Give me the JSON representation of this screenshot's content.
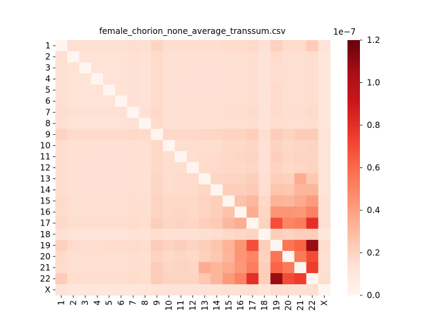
{
  "chart_data": {
    "type": "heatmap",
    "title": "female_chorion_none_average_transsum.csv",
    "xlabel": "",
    "ylabel": "",
    "row_labels": [
      "1",
      "2",
      "3",
      "4",
      "5",
      "6",
      "7",
      "8",
      "9",
      "10",
      "11",
      "12",
      "13",
      "14",
      "15",
      "16",
      "17",
      "18",
      "19",
      "20",
      "21",
      "22",
      "X"
    ],
    "col_labels": [
      "1",
      "2",
      "3",
      "4",
      "5",
      "6",
      "7",
      "8",
      "9",
      "10",
      "11",
      "12",
      "13",
      "14",
      "15",
      "16",
      "17",
      "18",
      "19",
      "20",
      "21",
      "22",
      "X"
    ],
    "values": [
      [
        0.0,
        1.5,
        1.5,
        1.5,
        1.5,
        1.5,
        1.6,
        1.5,
        2.0,
        1.6,
        1.6,
        1.6,
        1.6,
        1.6,
        1.7,
        1.7,
        1.8,
        1.4,
        2.1,
        1.7,
        1.7,
        2.3,
        1.2
      ],
      [
        1.5,
        0.0,
        1.3,
        1.3,
        1.3,
        1.3,
        1.4,
        1.3,
        1.7,
        1.4,
        1.4,
        1.4,
        1.4,
        1.4,
        1.5,
        1.5,
        1.6,
        1.2,
        1.7,
        1.5,
        1.5,
        1.6,
        1.1
      ],
      [
        1.5,
        1.3,
        0.0,
        1.3,
        1.3,
        1.3,
        1.4,
        1.3,
        1.7,
        1.4,
        1.5,
        1.4,
        1.4,
        1.4,
        1.5,
        1.5,
        1.6,
        1.2,
        1.6,
        1.5,
        1.5,
        1.6,
        1.1
      ],
      [
        1.5,
        1.3,
        1.3,
        0.0,
        1.3,
        1.3,
        1.4,
        1.3,
        1.7,
        1.4,
        1.4,
        1.4,
        1.4,
        1.4,
        1.5,
        1.5,
        1.6,
        1.2,
        1.6,
        1.5,
        1.5,
        1.6,
        1.1
      ],
      [
        1.5,
        1.3,
        1.3,
        1.3,
        0.0,
        1.3,
        1.4,
        1.3,
        1.7,
        1.4,
        1.4,
        1.4,
        1.4,
        1.4,
        1.5,
        1.5,
        1.6,
        1.2,
        1.7,
        1.5,
        1.5,
        1.6,
        1.1
      ],
      [
        1.5,
        1.3,
        1.3,
        1.3,
        1.3,
        0.0,
        1.4,
        1.3,
        1.7,
        1.4,
        1.4,
        1.4,
        1.4,
        1.4,
        1.5,
        1.5,
        1.6,
        1.2,
        1.7,
        1.5,
        1.5,
        1.6,
        1.1
      ],
      [
        1.6,
        1.4,
        1.4,
        1.4,
        1.4,
        1.4,
        0.0,
        1.4,
        1.8,
        1.5,
        1.5,
        1.5,
        1.5,
        1.5,
        1.6,
        1.6,
        1.7,
        1.3,
        1.7,
        1.6,
        1.6,
        1.7,
        1.1
      ],
      [
        1.5,
        1.3,
        1.3,
        1.3,
        1.3,
        1.3,
        1.4,
        0.0,
        1.7,
        1.4,
        1.4,
        1.4,
        1.4,
        1.4,
        1.5,
        1.5,
        1.6,
        1.2,
        1.6,
        1.5,
        1.5,
        1.6,
        1.1
      ],
      [
        2.0,
        1.7,
        1.7,
        1.7,
        1.7,
        1.7,
        1.8,
        1.7,
        0.0,
        1.8,
        1.8,
        1.8,
        1.9,
        1.9,
        2.0,
        2.0,
        2.2,
        1.6,
        2.3,
        2.0,
        2.3,
        2.3,
        1.3
      ],
      [
        1.6,
        1.4,
        1.4,
        1.4,
        1.4,
        1.4,
        1.5,
        1.4,
        1.8,
        0.0,
        1.6,
        1.6,
        1.6,
        1.6,
        1.8,
        1.8,
        1.9,
        1.4,
        2.0,
        1.8,
        1.9,
        2.0,
        1.2
      ],
      [
        1.6,
        1.4,
        1.5,
        1.4,
        1.4,
        1.4,
        1.5,
        1.4,
        1.8,
        1.6,
        0.0,
        1.6,
        1.7,
        1.7,
        1.8,
        1.9,
        2.0,
        1.4,
        2.2,
        1.9,
        2.0,
        2.0,
        1.2
      ],
      [
        1.6,
        1.4,
        1.4,
        1.4,
        1.4,
        1.4,
        1.5,
        1.4,
        1.8,
        1.6,
        1.6,
        0.0,
        1.7,
        1.7,
        1.8,
        1.8,
        1.9,
        1.4,
        2.0,
        1.8,
        1.9,
        2.0,
        1.2
      ],
      [
        1.6,
        1.4,
        1.4,
        1.4,
        1.4,
        1.4,
        1.5,
        1.4,
        1.9,
        1.6,
        1.7,
        1.7,
        0.0,
        1.9,
        2.0,
        2.0,
        2.2,
        1.5,
        2.2,
        2.1,
        3.5,
        2.5,
        1.2
      ],
      [
        1.6,
        1.4,
        1.4,
        1.4,
        1.4,
        1.4,
        1.5,
        1.4,
        1.9,
        1.6,
        1.7,
        1.7,
        1.9,
        0.0,
        2.2,
        2.2,
        2.4,
        1.6,
        2.6,
        2.5,
        3.2,
        3.2,
        1.3
      ],
      [
        1.7,
        1.5,
        1.5,
        1.5,
        1.5,
        1.5,
        1.6,
        1.5,
        2.0,
        1.8,
        1.8,
        1.8,
        2.0,
        2.2,
        0.0,
        2.7,
        3.1,
        1.8,
        3.3,
        3.2,
        3.6,
        4.2,
        1.4
      ],
      [
        1.7,
        1.5,
        1.5,
        1.5,
        1.5,
        1.5,
        1.6,
        1.5,
        2.0,
        1.8,
        1.9,
        1.8,
        2.0,
        2.2,
        2.7,
        0.0,
        3.5,
        1.9,
        4.4,
        4.4,
        4.3,
        5.1,
        1.4
      ],
      [
        1.8,
        1.6,
        1.6,
        1.6,
        1.6,
        1.6,
        1.7,
        1.6,
        2.2,
        1.9,
        2.0,
        1.9,
        2.2,
        2.4,
        3.1,
        3.5,
        0.0,
        2.0,
        6.9,
        5.0,
        5.3,
        8.0,
        1.5
      ],
      [
        1.4,
        1.2,
        1.2,
        1.2,
        1.2,
        1.2,
        1.3,
        1.2,
        1.6,
        1.4,
        1.4,
        1.4,
        1.5,
        1.6,
        1.8,
        1.9,
        2.0,
        0.0,
        2.2,
        2.0,
        2.2,
        2.2,
        1.1
      ],
      [
        2.1,
        1.7,
        1.6,
        1.6,
        1.7,
        1.7,
        1.7,
        1.6,
        2.3,
        2.0,
        2.2,
        2.0,
        2.2,
        2.6,
        3.3,
        4.4,
        6.9,
        2.2,
        0.0,
        5.6,
        6.2,
        10.8,
        1.6
      ],
      [
        1.7,
        1.5,
        1.5,
        1.5,
        1.5,
        1.5,
        1.6,
        1.5,
        2.0,
        1.8,
        1.9,
        1.8,
        2.1,
        2.5,
        3.2,
        4.4,
        5.0,
        2.0,
        5.6,
        0.0,
        5.4,
        7.0,
        1.4
      ],
      [
        1.7,
        1.5,
        1.5,
        1.5,
        1.5,
        1.5,
        1.6,
        1.5,
        2.3,
        1.9,
        2.0,
        1.9,
        3.5,
        3.2,
        3.6,
        4.3,
        5.3,
        2.2,
        6.2,
        5.4,
        0.0,
        7.5,
        1.4
      ],
      [
        2.3,
        1.6,
        1.6,
        1.6,
        1.6,
        1.6,
        1.7,
        1.6,
        2.3,
        2.0,
        2.0,
        2.0,
        2.5,
        3.2,
        4.2,
        5.1,
        8.0,
        2.2,
        10.8,
        7.0,
        7.5,
        0.0,
        1.6
      ],
      [
        1.2,
        1.1,
        1.1,
        1.1,
        1.1,
        1.1,
        1.1,
        1.1,
        1.3,
        1.2,
        1.2,
        1.2,
        1.2,
        1.3,
        1.4,
        1.4,
        1.5,
        1.1,
        1.6,
        1.4,
        1.4,
        1.6,
        0.0
      ]
    ],
    "value_unit_scale": "1e-8",
    "colorbar": {
      "min": 0.0,
      "max": 1.2,
      "ticks": [
        "0.0",
        "0.2",
        "0.4",
        "0.6",
        "0.8",
        "1.0",
        "1.2"
      ],
      "offset_label": "1e−7",
      "colormap": "Reds"
    },
    "grid": false,
    "legend": "colorbar-right"
  }
}
